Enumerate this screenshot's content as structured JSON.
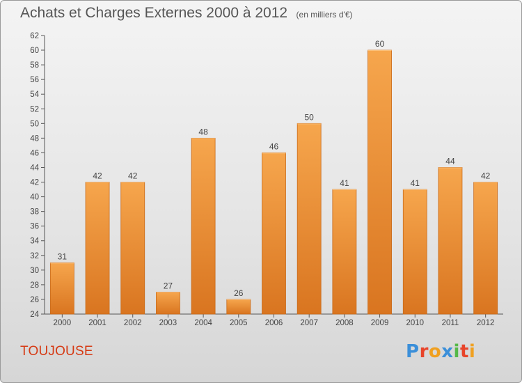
{
  "header": {
    "title": "Achats et Charges Externes 2000 à 2012",
    "unit": "(en milliers d'€)"
  },
  "footer": {
    "commune": "TOUJOUSE",
    "brand": "Proxiti",
    "brand_colors": [
      "#3b8fd9",
      "#e8442a",
      "#f0a020",
      "#3b8fd9",
      "#55b848",
      "#e8442a",
      "#f0a020"
    ]
  },
  "colors": {
    "bar_top": "#f6a64d",
    "bar_bottom": "#d97520",
    "bar_edge": "#c86a1a",
    "commune_text": "#d63a14"
  },
  "chart_data": {
    "type": "bar",
    "title": "Achats et Charges Externes 2000 à 2012",
    "subtitle": "(en milliers d'€)",
    "categories": [
      "2000",
      "2001",
      "2002",
      "2003",
      "2004",
      "2005",
      "2006",
      "2007",
      "2008",
      "2009",
      "2010",
      "2011",
      "2012"
    ],
    "values": [
      31,
      42,
      42,
      27,
      48,
      26,
      46,
      50,
      41,
      60,
      41,
      44,
      42
    ],
    "ylim": [
      24,
      62
    ],
    "yticks": [
      24,
      26,
      28,
      30,
      32,
      34,
      36,
      38,
      40,
      42,
      44,
      46,
      48,
      50,
      52,
      54,
      56,
      58,
      60,
      62
    ],
    "grid": false,
    "data_labels": true
  }
}
